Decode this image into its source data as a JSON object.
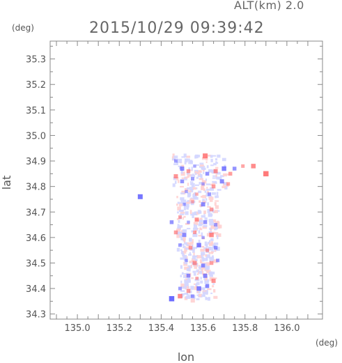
{
  "header": {
    "altitude_label": "ALT(km) 2.0",
    "datetime": "2015/10/29 09:39:42"
  },
  "chart_data": {
    "type": "heatmap",
    "title": "2015/10/29 09:39:42",
    "subtitle": "ALT(km) 2.0",
    "xlabel": "lon",
    "ylabel": "lat",
    "x_unit": "(deg)",
    "y_unit": "(deg)",
    "xlim": [
      134.87,
      136.17
    ],
    "ylim": [
      34.28,
      35.37
    ],
    "x_ticks": [
      "135.0",
      "135.2",
      "135.4",
      "135.6",
      "135.8",
      "136.0"
    ],
    "x_tick_values": [
      135.0,
      135.2,
      135.4,
      135.6,
      135.8,
      136.0
    ],
    "y_ticks": [
      "34.3",
      "34.4",
      "34.5",
      "34.6",
      "34.7",
      "34.8",
      "34.9",
      "35.0",
      "35.1",
      "35.2",
      "35.3"
    ],
    "y_tick_values": [
      34.3,
      34.4,
      34.5,
      34.6,
      34.7,
      34.8,
      34.9,
      35.0,
      35.1,
      35.2,
      35.3
    ],
    "grid": false,
    "colors": {
      "positive": "#ff6a6a",
      "negative": "#5a5aff",
      "axis": "#888888",
      "text": "#555555"
    },
    "points": [
      {
        "lon": 135.61,
        "lat": 34.92,
        "v": 0.8
      },
      {
        "lon": 135.47,
        "lat": 34.9,
        "v": -0.4
      },
      {
        "lon": 135.5,
        "lat": 34.87,
        "v": -0.6
      },
      {
        "lon": 135.53,
        "lat": 34.86,
        "v": 0.5
      },
      {
        "lon": 135.56,
        "lat": 34.88,
        "v": -0.3
      },
      {
        "lon": 135.62,
        "lat": 34.85,
        "v": -0.5
      },
      {
        "lon": 135.66,
        "lat": 34.86,
        "v": 0.6
      },
      {
        "lon": 135.7,
        "lat": 34.87,
        "v": -0.7
      },
      {
        "lon": 135.75,
        "lat": 34.87,
        "v": -0.5
      },
      {
        "lon": 135.79,
        "lat": 34.88,
        "v": 0.4
      },
      {
        "lon": 135.84,
        "lat": 34.88,
        "v": 0.7
      },
      {
        "lon": 135.9,
        "lat": 34.85,
        "v": 0.9
      },
      {
        "lon": 135.73,
        "lat": 34.85,
        "v": 0.5
      },
      {
        "lon": 135.47,
        "lat": 34.84,
        "v": 0.6
      },
      {
        "lon": 135.5,
        "lat": 34.82,
        "v": -0.5
      },
      {
        "lon": 135.55,
        "lat": 34.83,
        "v": -0.4
      },
      {
        "lon": 135.6,
        "lat": 34.81,
        "v": -0.3
      },
      {
        "lon": 135.65,
        "lat": 34.8,
        "v": 0.5
      },
      {
        "lon": 135.69,
        "lat": 34.82,
        "v": -0.6
      },
      {
        "lon": 135.72,
        "lat": 34.81,
        "v": 0.4
      },
      {
        "lon": 135.52,
        "lat": 34.78,
        "v": -0.3
      },
      {
        "lon": 135.57,
        "lat": 34.77,
        "v": 0.3
      },
      {
        "lon": 135.63,
        "lat": 34.77,
        "v": -0.4
      },
      {
        "lon": 135.3,
        "lat": 34.76,
        "v": -0.8
      },
      {
        "lon": 135.51,
        "lat": 34.73,
        "v": -0.3
      },
      {
        "lon": 135.55,
        "lat": 34.74,
        "v": 0.3
      },
      {
        "lon": 135.6,
        "lat": 34.73,
        "v": -0.6
      },
      {
        "lon": 135.64,
        "lat": 34.71,
        "v": 0.5
      },
      {
        "lon": 135.45,
        "lat": 34.66,
        "v": -0.5
      },
      {
        "lon": 135.49,
        "lat": 34.68,
        "v": 0.4
      },
      {
        "lon": 135.53,
        "lat": 34.66,
        "v": -0.3
      },
      {
        "lon": 135.57,
        "lat": 34.67,
        "v": 0.6
      },
      {
        "lon": 135.61,
        "lat": 34.66,
        "v": -0.5
      },
      {
        "lon": 135.66,
        "lat": 34.65,
        "v": -0.4
      },
      {
        "lon": 135.47,
        "lat": 34.62,
        "v": 0.5
      },
      {
        "lon": 135.51,
        "lat": 34.61,
        "v": -0.6
      },
      {
        "lon": 135.56,
        "lat": 34.62,
        "v": 0.4
      },
      {
        "lon": 135.6,
        "lat": 34.6,
        "v": -0.3
      },
      {
        "lon": 135.64,
        "lat": 34.61,
        "v": 0.7
      },
      {
        "lon": 135.49,
        "lat": 34.57,
        "v": -0.4
      },
      {
        "lon": 135.54,
        "lat": 34.56,
        "v": 0.5
      },
      {
        "lon": 135.58,
        "lat": 34.57,
        "v": -0.7
      },
      {
        "lon": 135.62,
        "lat": 34.55,
        "v": 0.4
      },
      {
        "lon": 135.66,
        "lat": 34.56,
        "v": -0.5
      },
      {
        "lon": 135.52,
        "lat": 34.51,
        "v": -0.3
      },
      {
        "lon": 135.56,
        "lat": 34.5,
        "v": 0.6
      },
      {
        "lon": 135.6,
        "lat": 34.49,
        "v": -0.5
      },
      {
        "lon": 135.64,
        "lat": 34.5,
        "v": 0.5
      },
      {
        "lon": 135.67,
        "lat": 34.51,
        "v": -0.4
      },
      {
        "lon": 135.53,
        "lat": 34.45,
        "v": -0.5
      },
      {
        "lon": 135.57,
        "lat": 34.44,
        "v": 0.3
      },
      {
        "lon": 135.61,
        "lat": 34.45,
        "v": -0.6
      },
      {
        "lon": 135.65,
        "lat": 34.43,
        "v": 0.6
      },
      {
        "lon": 135.49,
        "lat": 34.4,
        "v": -0.4
      },
      {
        "lon": 135.53,
        "lat": 34.39,
        "v": 0.5
      },
      {
        "lon": 135.58,
        "lat": 34.4,
        "v": -0.7
      },
      {
        "lon": 135.62,
        "lat": 34.41,
        "v": -0.5
      },
      {
        "lon": 135.45,
        "lat": 34.36,
        "v": -0.9
      },
      {
        "lon": 135.49,
        "lat": 34.37,
        "v": 0.7
      },
      {
        "lon": 135.55,
        "lat": 34.37,
        "v": -0.4
      }
    ]
  }
}
